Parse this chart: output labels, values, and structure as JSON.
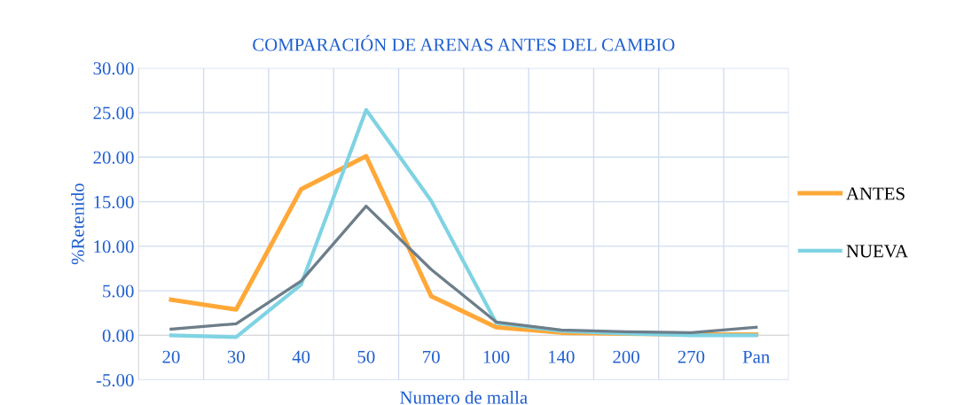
{
  "chart_data": {
    "type": "line",
    "title": "COMPARACIÓN DE ARENAS ANTES DEL CAMBIO",
    "xlabel": "Numero de malla",
    "ylabel": "%Retenido",
    "categories": [
      "20",
      "30",
      "40",
      "50",
      "70",
      "100",
      "140",
      "200",
      "270",
      "Pan"
    ],
    "series": [
      {
        "name": "ANTES",
        "color": "#ffa838",
        "values": [
          4.0,
          2.9,
          16.4,
          20.1,
          4.4,
          0.9,
          0.3,
          0.2,
          0.1,
          0.1
        ]
      },
      {
        "name": "NUEVA",
        "color": "#7fd3e3",
        "values": [
          0.0,
          -0.2,
          5.7,
          25.3,
          15.1,
          1.4,
          0.5,
          0.2,
          0.0,
          0.0
        ]
      },
      {
        "color": "#6d7e8a",
        "values": [
          0.7,
          1.3,
          6.1,
          14.5,
          7.4,
          1.5,
          0.6,
          0.4,
          0.3,
          0.9
        ]
      }
    ],
    "ylim": [
      -5,
      30
    ],
    "yticks": [
      {
        "value": -5,
        "label": "-5.00"
      },
      {
        "value": 0,
        "label": "0.00"
      },
      {
        "value": 5,
        "label": "5.00"
      },
      {
        "value": 10,
        "label": "10.00"
      },
      {
        "value": 15,
        "label": "15.00"
      },
      {
        "value": 20,
        "label": "20.00"
      },
      {
        "value": 25,
        "label": "25.00"
      },
      {
        "value": 30,
        "label": "30.00"
      }
    ],
    "grid": true,
    "legend": "right",
    "marker": "none",
    "line_style": "solid"
  }
}
